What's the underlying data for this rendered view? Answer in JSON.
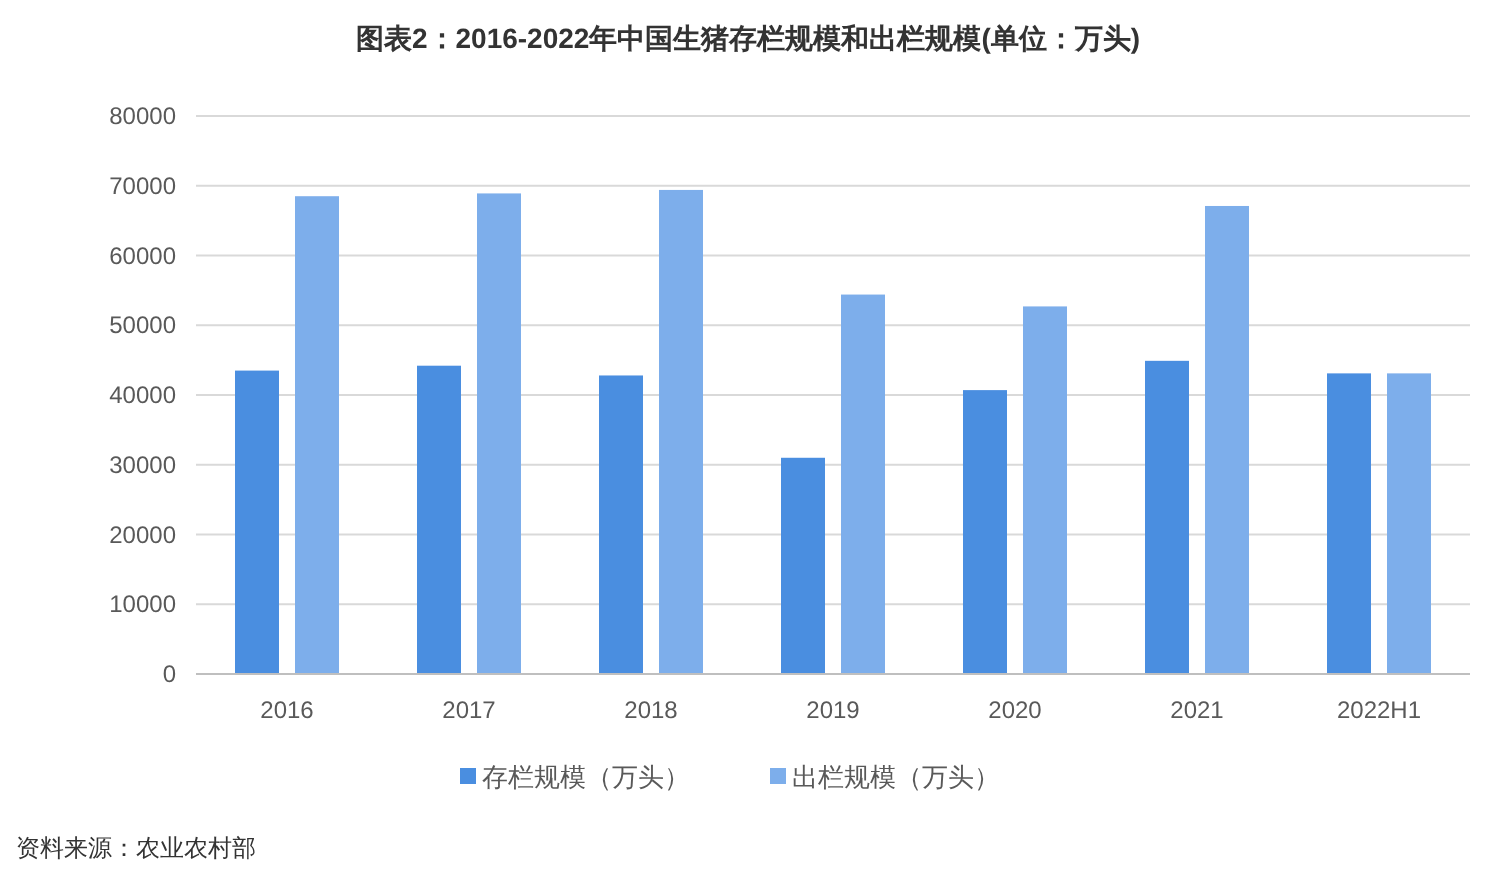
{
  "chart_data": {
    "type": "bar",
    "title": "图表2：2016-2022年中国生猪存栏规模和出栏规模(单位：万头)",
    "categories": [
      "2016",
      "2017",
      "2018",
      "2019",
      "2020",
      "2021",
      "2022H1"
    ],
    "series": [
      {
        "name": "存栏规模（万头）",
        "color": "#4a8ee0",
        "values": [
          43500,
          44200,
          42800,
          31000,
          40700,
          44900,
          43100
        ]
      },
      {
        "name": "出栏规模（万头）",
        "color": "#7daeeb",
        "values": [
          68500,
          68900,
          69400,
          54400,
          52700,
          67100,
          43100
        ]
      }
    ],
    "ylim": [
      0,
      80000
    ],
    "yticks": [
      0,
      10000,
      20000,
      30000,
      40000,
      50000,
      60000,
      70000,
      80000
    ],
    "grid": "y",
    "legend": "bottom",
    "annotations": [
      "资料来源：农业农村部"
    ]
  }
}
